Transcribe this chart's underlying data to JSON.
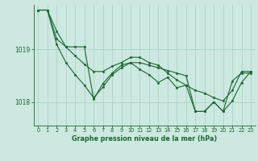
{
  "bg_color": "#cce8e0",
  "grid_color": "#aad4c8",
  "line_color": "#1a6632",
  "marker_color": "#1a6632",
  "xlabel": "Graphe pression niveau de la mer (hPa)",
  "xlabel_color": "#1a6632",
  "tick_color": "#1a6632",
  "ylim": [
    1017.55,
    1019.85
  ],
  "xlim": [
    -0.5,
    23.5
  ],
  "yticks": [
    1018,
    1019
  ],
  "xticks": [
    0,
    1,
    2,
    3,
    4,
    5,
    6,
    7,
    8,
    9,
    10,
    11,
    12,
    13,
    14,
    15,
    16,
    17,
    18,
    19,
    20,
    21,
    22,
    23
  ],
  "series": [
    [
      1019.75,
      1019.75,
      1019.35,
      1019.05,
      1019.05,
      1019.05,
      1018.05,
      1018.35,
      1018.55,
      1018.7,
      1018.75,
      1018.75,
      1018.7,
      1018.65,
      1018.6,
      1018.55,
      1018.5,
      1017.82,
      1017.82,
      1018.0,
      1017.82,
      1018.4,
      1018.55,
      1018.55
    ],
    [
      1019.75,
      1019.75,
      1019.2,
      1019.05,
      1018.88,
      1018.72,
      1018.58,
      1018.58,
      1018.68,
      1018.75,
      1018.85,
      1018.85,
      1018.75,
      1018.7,
      1018.55,
      1018.42,
      1018.32,
      1018.22,
      1018.17,
      1018.08,
      1018.02,
      1018.22,
      1018.58,
      1018.58
    ],
    [
      1019.75,
      1019.75,
      1019.1,
      1018.75,
      1018.52,
      1018.32,
      1018.08,
      1018.28,
      1018.52,
      1018.65,
      1018.75,
      1018.62,
      1018.52,
      1018.37,
      1018.47,
      1018.27,
      1018.32,
      1017.82,
      1017.82,
      1018.0,
      1017.82,
      1018.02,
      1018.37,
      1018.58
    ]
  ]
}
